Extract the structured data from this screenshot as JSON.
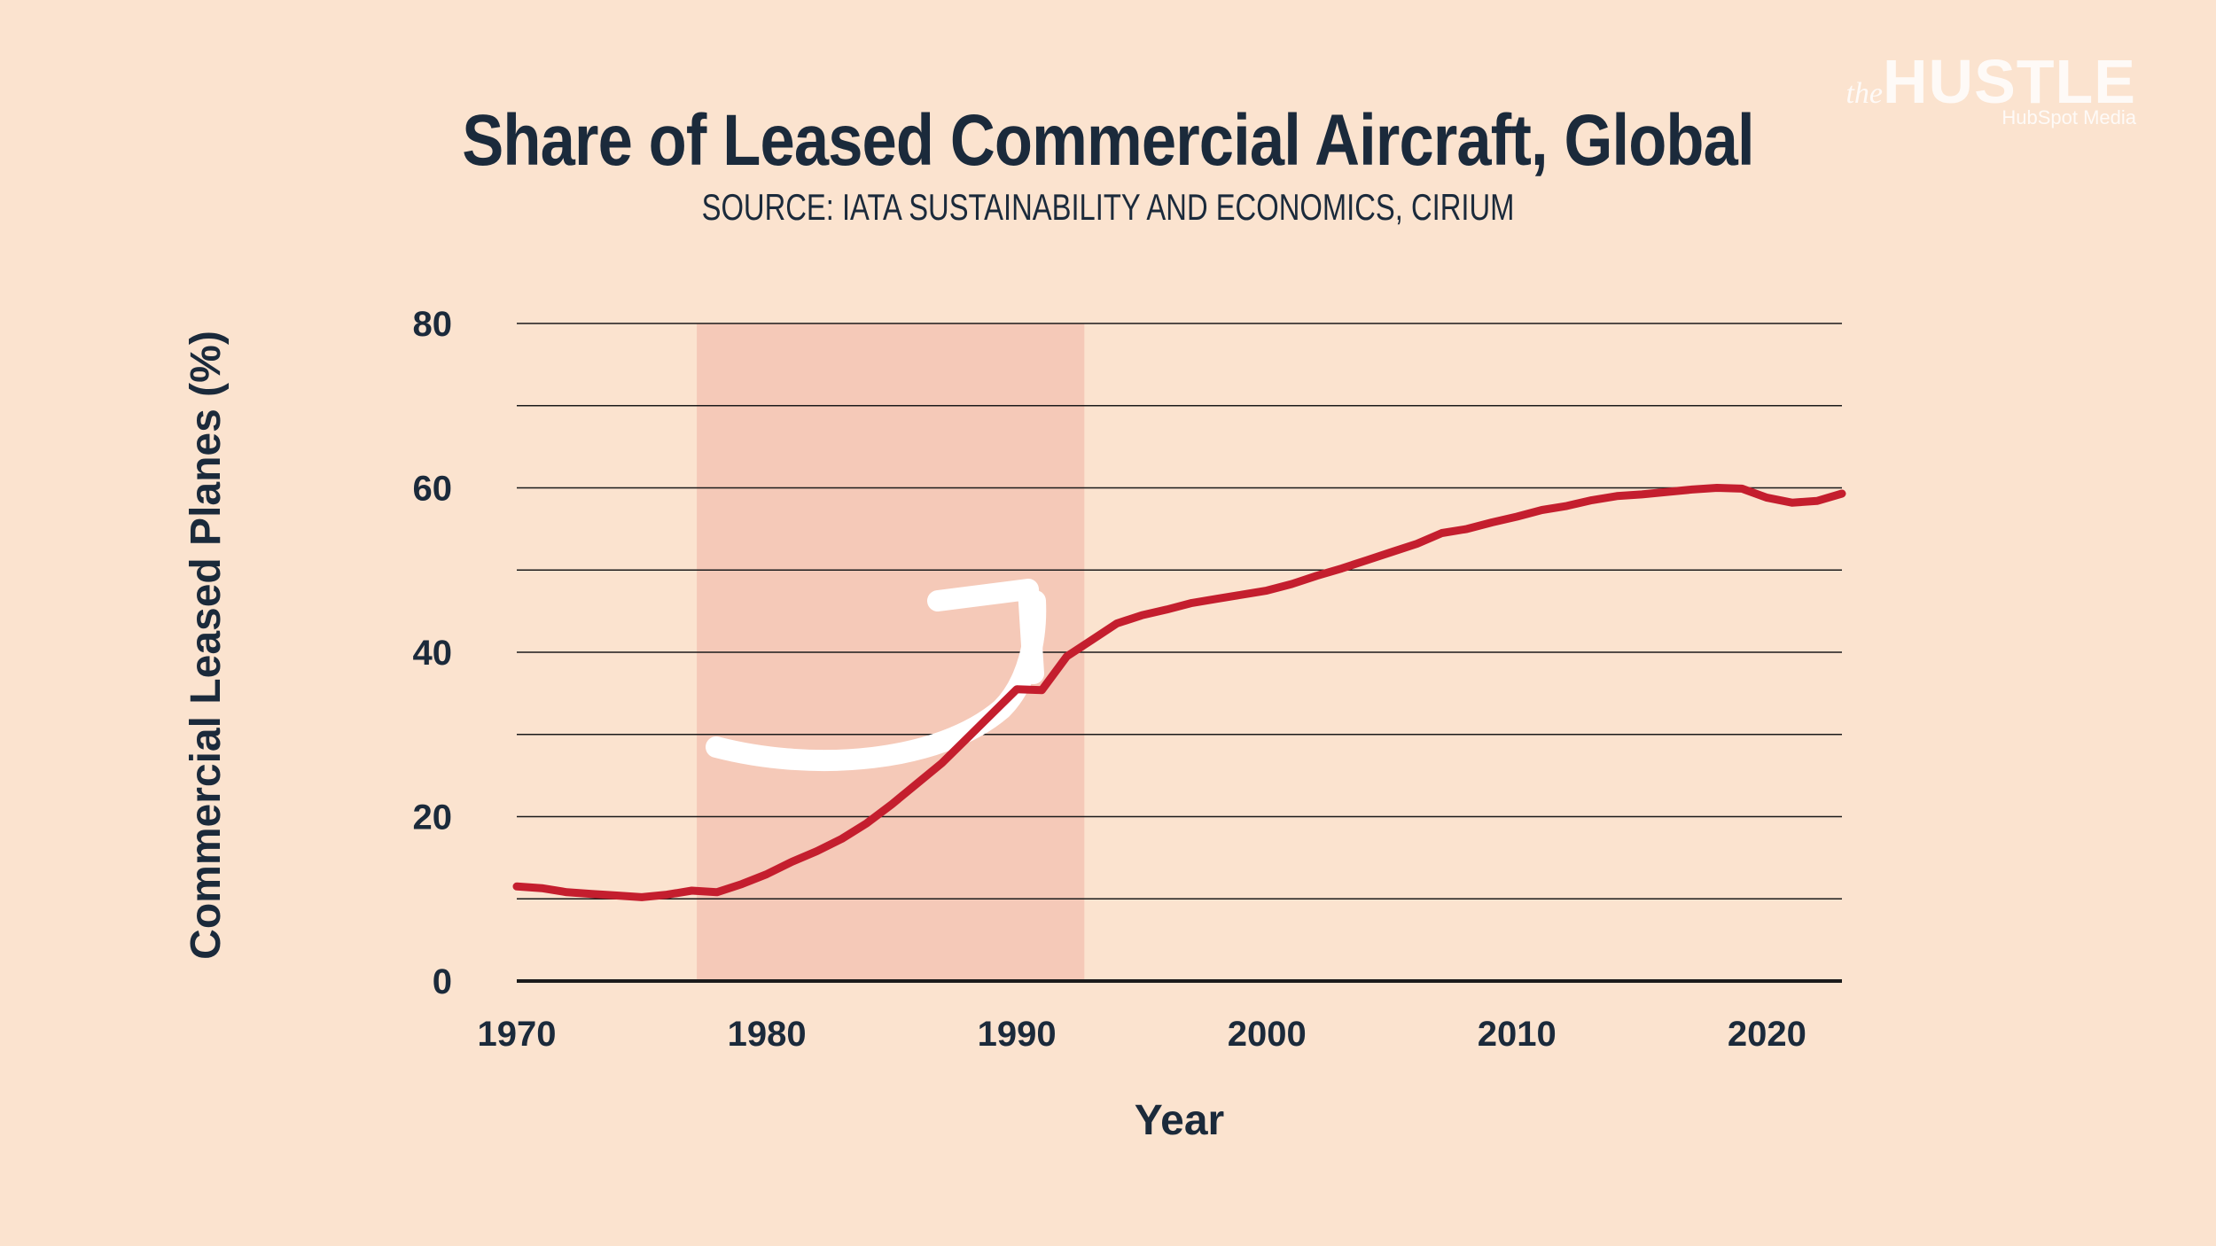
{
  "brand": {
    "prefix": "the",
    "name": "HUSTLE",
    "tagline": "HubSpot Media"
  },
  "colors": {
    "background": "#fbe3cf",
    "text": "#1b2a3b",
    "line": "#c41e2e",
    "highlight": "#f3c4b4",
    "grid": "#1b1b1b",
    "arrow": "#ffffff"
  },
  "chart_data": {
    "type": "line",
    "title": "Share of Leased Commercial Aircraft, Global",
    "subtitle": "SOURCE: IATA SUSTAINABILITY AND ECONOMICS, CIRIUM",
    "xlabel": "Year",
    "ylabel": "Commercial Leased Planes (%)",
    "xlim": [
      1970,
      2023
    ],
    "ylim": [
      0,
      80
    ],
    "grid": true,
    "x_ticks": [
      1970,
      1980,
      1990,
      2000,
      2010,
      2020
    ],
    "y_ticks": [
      0,
      20,
      40,
      60,
      80
    ],
    "gridlines": [
      10,
      20,
      30,
      40,
      50,
      60,
      70,
      80
    ],
    "highlight_range": [
      1977.2,
      1992.7
    ],
    "annotation": "upward-arrow",
    "series": [
      {
        "name": "Commercial Leased Planes (%)",
        "x": [
          1970,
          1971,
          1972,
          1973,
          1974,
          1975,
          1976,
          1977,
          1978,
          1979,
          1980,
          1981,
          1982,
          1983,
          1984,
          1985,
          1986,
          1987,
          1988,
          1989,
          1990,
          1991,
          1992,
          1993,
          1994,
          1995,
          1996,
          1997,
          1998,
          1999,
          2000,
          2001,
          2002,
          2003,
          2004,
          2005,
          2006,
          2007,
          2008,
          2009,
          2010,
          2011,
          2012,
          2013,
          2014,
          2015,
          2016,
          2017,
          2018,
          2019,
          2020,
          2021,
          2022,
          2023
        ],
        "values": [
          11.5,
          11.3,
          10.8,
          10.6,
          10.4,
          10.2,
          10.5,
          11.0,
          10.8,
          11.8,
          13.0,
          14.5,
          15.8,
          17.3,
          19.2,
          21.5,
          24.0,
          26.5,
          29.5,
          32.5,
          35.5,
          35.4,
          39.5,
          41.5,
          43.5,
          44.5,
          45.2,
          46.0,
          46.5,
          47.0,
          47.5,
          48.3,
          49.3,
          50.2,
          51.2,
          52.2,
          53.2,
          54.5,
          55.0,
          55.8,
          56.5,
          57.3,
          57.8,
          58.5,
          59.0,
          59.2,
          59.5,
          59.8,
          60.0,
          59.9,
          58.8,
          58.2,
          58.4,
          59.3
        ]
      }
    ]
  }
}
